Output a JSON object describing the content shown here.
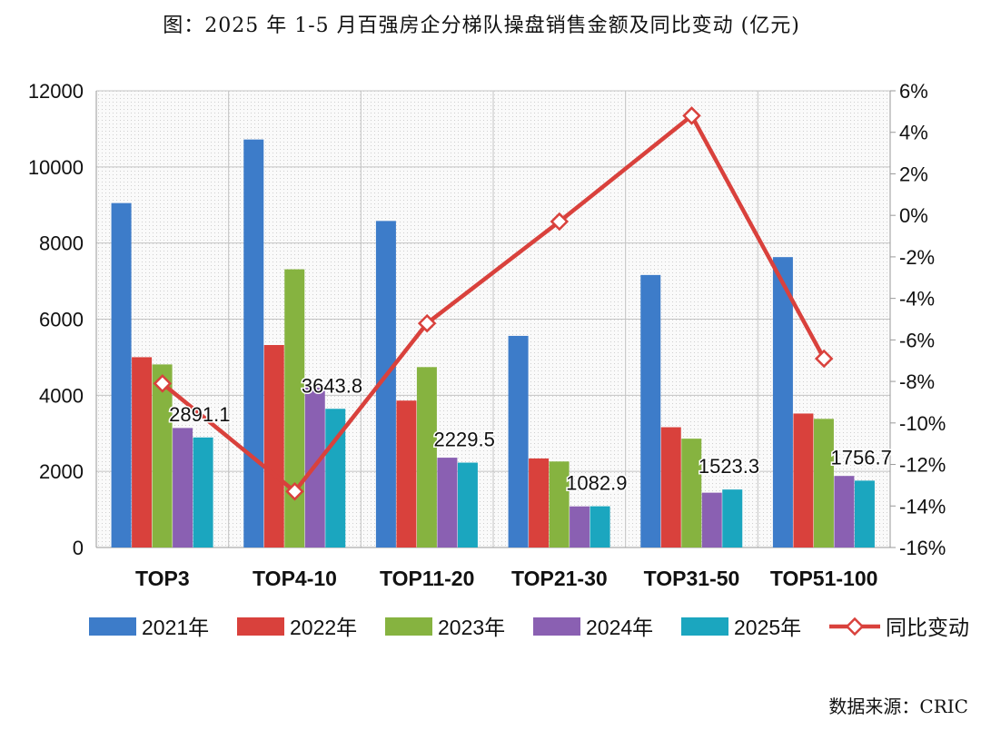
{
  "title": "图：2025 年 1-5 月百强房企分梯队操盘销售金额及同比变动 (亿元)",
  "source": "数据来源：CRIC",
  "chart_data": {
    "type": "bar",
    "categories": [
      "TOP3",
      "TOP4-10",
      "TOP11-20",
      "TOP21-30",
      "TOP31-50",
      "TOP51-100"
    ],
    "series": [
      {
        "name": "2021年",
        "color": "#3D7CC9",
        "values": [
          9050,
          10720,
          8580,
          5560,
          7160,
          7630
        ]
      },
      {
        "name": "2022年",
        "color": "#D9413C",
        "values": [
          5000,
          5320,
          3860,
          2340,
          3160,
          3520
        ]
      },
      {
        "name": "2023年",
        "color": "#86B340",
        "values": [
          4810,
          7310,
          4740,
          2260,
          2860,
          3380
        ]
      },
      {
        "name": "2024年",
        "color": "#8A60B2",
        "values": [
          3140,
          4200,
          2360,
          1080,
          1440,
          1880
        ]
      },
      {
        "name": "2025年",
        "color": "#1BA6BF",
        "values": [
          2891.1,
          3643.8,
          2229.5,
          1082.9,
          1523.3,
          1756.7
        ]
      }
    ],
    "data_labels": [
      "2891.1",
      "3643.8",
      "2229.5",
      "1082.9",
      "1523.3",
      "1756.7"
    ],
    "line_series": {
      "name": "同比变动",
      "color": "#D9413C",
      "axis": "right",
      "values": [
        -8.1,
        -13.3,
        -5.2,
        -0.3,
        4.8,
        -6.9
      ]
    },
    "ylim": [
      0,
      12000
    ],
    "y_ticks": [
      "0",
      "2000",
      "4000",
      "6000",
      "8000",
      "10000",
      "12000"
    ],
    "y2lim": [
      -16,
      6
    ],
    "y2_ticks": [
      "-16%",
      "-14%",
      "-12%",
      "-10%",
      "-8%",
      "-6%",
      "-4%",
      "-2%",
      "0%",
      "2%",
      "4%",
      "6%"
    ],
    "legend_position": "bottom",
    "grid": true
  }
}
